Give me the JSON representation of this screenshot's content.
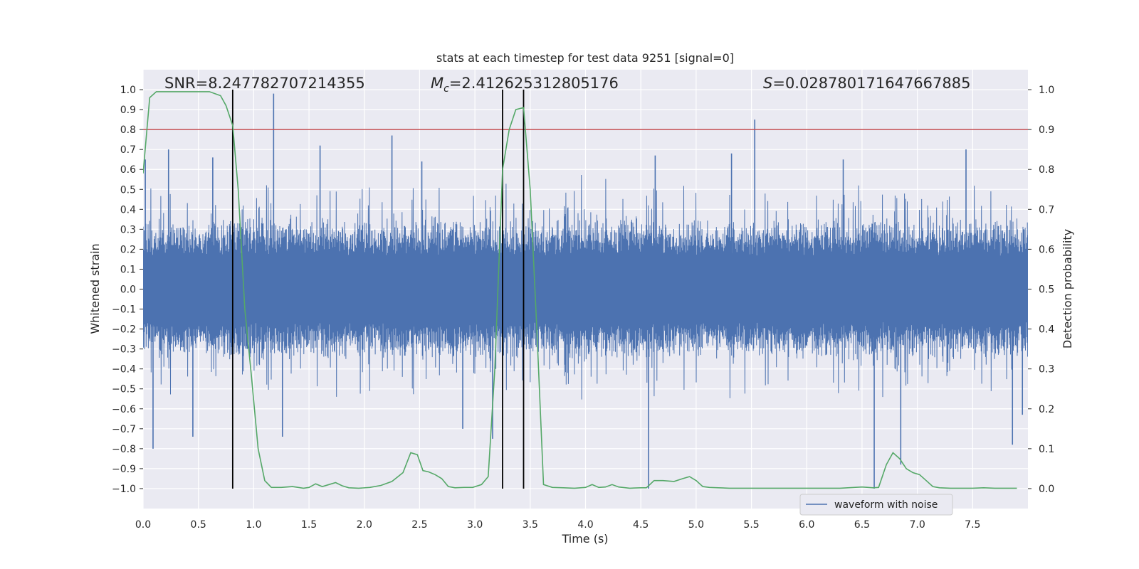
{
  "chart_data": {
    "type": "line",
    "title": "stats at each timestep for test data 9251 [signal=0]",
    "xlabel": "Time (s)",
    "ylabel": "Whitened strain",
    "ylabel_right": "Detection probability",
    "xlim": [
      0.0,
      8.0
    ],
    "ylim": [
      -1.1,
      1.1
    ],
    "ylim_right": [
      -0.05,
      1.05
    ],
    "x_ticks": [
      0.0,
      0.5,
      1.0,
      1.5,
      2.0,
      2.5,
      3.0,
      3.5,
      4.0,
      4.5,
      5.0,
      5.5,
      6.0,
      6.5,
      7.0,
      7.5
    ],
    "x_tick_labels": [
      "0.0",
      "0.5",
      "1.0",
      "1.5",
      "2.0",
      "2.5",
      "3.0",
      "3.5",
      "4.0",
      "4.5",
      "5.0",
      "5.5",
      "6.0",
      "6.5",
      "7.0",
      "7.5"
    ],
    "y_ticks": [
      1.0,
      0.9,
      0.8,
      0.7,
      0.6,
      0.5,
      0.4,
      0.3,
      0.2,
      0.1,
      0.0,
      -0.1,
      -0.2,
      -0.3,
      -0.4,
      -0.5,
      -0.6,
      -0.7,
      -0.8,
      -0.9,
      -1.0
    ],
    "y_tick_labels": [
      "1.0",
      "0.9",
      "0.8",
      "0.7",
      "0.6",
      "0.5",
      "0.4",
      "0.3",
      "0.2",
      "0.1",
      "0.0",
      "−0.1",
      "−0.2",
      "−0.3",
      "−0.4",
      "−0.5",
      "−0.6",
      "−0.7",
      "−0.8",
      "−0.9",
      "−1.0"
    ],
    "y_right_ticks": [
      1.0,
      0.9,
      0.8,
      0.7,
      0.6,
      0.5,
      0.4,
      0.3,
      0.2,
      0.1,
      0.0
    ],
    "y_right_tick_labels": [
      "1.0",
      "0.9",
      "0.8",
      "0.7",
      "0.6",
      "0.5",
      "0.4",
      "0.3",
      "0.2",
      "0.1",
      "0.0"
    ],
    "grid": true,
    "legend": {
      "entries": [
        "waveform with noise"
      ],
      "placement": "lower-right"
    },
    "annotations": {
      "snr": "SNR=8.247782707214355",
      "mc_symbol": "M",
      "mc_sub": "c",
      "mc_value": "=2.412625312805176",
      "s_symbol": "S",
      "s_value": "=0.028780171647667885"
    },
    "threshold_right": 0.9,
    "vlines_x": [
      0.81,
      3.25,
      3.44
    ],
    "waveform": {
      "name": "waveform with noise",
      "n_samples": 1600,
      "spikes": [
        {
          "x": 0.02,
          "y": 0.65
        },
        {
          "x": 0.09,
          "y": -0.8
        },
        {
          "x": 0.23,
          "y": 0.7
        },
        {
          "x": 0.45,
          "y": -0.74
        },
        {
          "x": 0.63,
          "y": 0.66
        },
        {
          "x": 1.18,
          "y": 0.98
        },
        {
          "x": 1.26,
          "y": -0.74
        },
        {
          "x": 1.6,
          "y": 0.72
        },
        {
          "x": 2.25,
          "y": 0.77
        },
        {
          "x": 2.52,
          "y": 0.64
        },
        {
          "x": 2.89,
          "y": -0.7
        },
        {
          "x": 3.16,
          "y": -0.75
        },
        {
          "x": 4.57,
          "y": -1.0
        },
        {
          "x": 4.63,
          "y": 0.67
        },
        {
          "x": 5.32,
          "y": 0.68
        },
        {
          "x": 5.53,
          "y": 0.85
        },
        {
          "x": 6.33,
          "y": 0.65
        },
        {
          "x": 6.61,
          "y": -1.0
        },
        {
          "x": 6.85,
          "y": -0.88
        },
        {
          "x": 7.44,
          "y": 0.7
        },
        {
          "x": 7.86,
          "y": -0.78
        },
        {
          "x": 7.95,
          "y": -0.63
        }
      ]
    },
    "probability": {
      "x": [
        0.0,
        0.06,
        0.12,
        0.2,
        0.3,
        0.4,
        0.5,
        0.6,
        0.7,
        0.75,
        0.81,
        0.86,
        0.92,
        0.98,
        1.04,
        1.1,
        1.16,
        1.25,
        1.35,
        1.45,
        1.5,
        1.56,
        1.62,
        1.68,
        1.74,
        1.8,
        1.86,
        1.95,
        2.05,
        2.15,
        2.25,
        2.35,
        2.42,
        2.48,
        2.53,
        2.58,
        2.64,
        2.7,
        2.76,
        2.82,
        2.9,
        2.98,
        3.06,
        3.12,
        3.18,
        3.25,
        3.31,
        3.37,
        3.44,
        3.5,
        3.56,
        3.62,
        3.7,
        3.8,
        3.9,
        4.0,
        4.06,
        4.12,
        4.18,
        4.24,
        4.3,
        4.4,
        4.5,
        4.55,
        4.62,
        4.7,
        4.8,
        4.88,
        4.94,
        5.0,
        5.06,
        5.12,
        5.2,
        5.3,
        5.5,
        5.7,
        5.9,
        6.1,
        6.3,
        6.5,
        6.6,
        6.65,
        6.72,
        6.78,
        6.84,
        6.9,
        6.96,
        7.02,
        7.08,
        7.14,
        7.2,
        7.3,
        7.4,
        7.5,
        7.6,
        7.7,
        7.8,
        7.9
      ],
      "values": [
        0.79,
        0.98,
        0.995,
        0.995,
        0.995,
        0.995,
        0.995,
        0.995,
        0.985,
        0.96,
        0.91,
        0.75,
        0.45,
        0.28,
        0.1,
        0.02,
        0.003,
        0.003,
        0.005,
        0.001,
        0.003,
        0.012,
        0.005,
        0.01,
        0.015,
        0.007,
        0.002,
        0.001,
        0.003,
        0.008,
        0.018,
        0.04,
        0.09,
        0.085,
        0.045,
        0.042,
        0.035,
        0.025,
        0.005,
        0.002,
        0.003,
        0.003,
        0.01,
        0.03,
        0.3,
        0.8,
        0.9,
        0.95,
        0.955,
        0.75,
        0.4,
        0.01,
        0.003,
        0.002,
        0.001,
        0.003,
        0.01,
        0.003,
        0.004,
        0.01,
        0.004,
        0.001,
        0.002,
        0.002,
        0.02,
        0.02,
        0.018,
        0.025,
        0.03,
        0.02,
        0.005,
        0.003,
        0.002,
        0.001,
        0.001,
        0.001,
        0.001,
        0.001,
        0.001,
        0.004,
        0.002,
        0.003,
        0.06,
        0.09,
        0.075,
        0.05,
        0.04,
        0.035,
        0.02,
        0.005,
        0.002,
        0.001,
        0.001,
        0.001,
        0.002,
        0.001,
        0.001,
        0.001
      ]
    },
    "colors": {
      "waveform": "#4c72b0",
      "probability": "#55a868",
      "threshold": "#c44e52",
      "vline": "#000000",
      "plot_bg": "#eaeaf2",
      "grid": "#ffffff"
    }
  }
}
